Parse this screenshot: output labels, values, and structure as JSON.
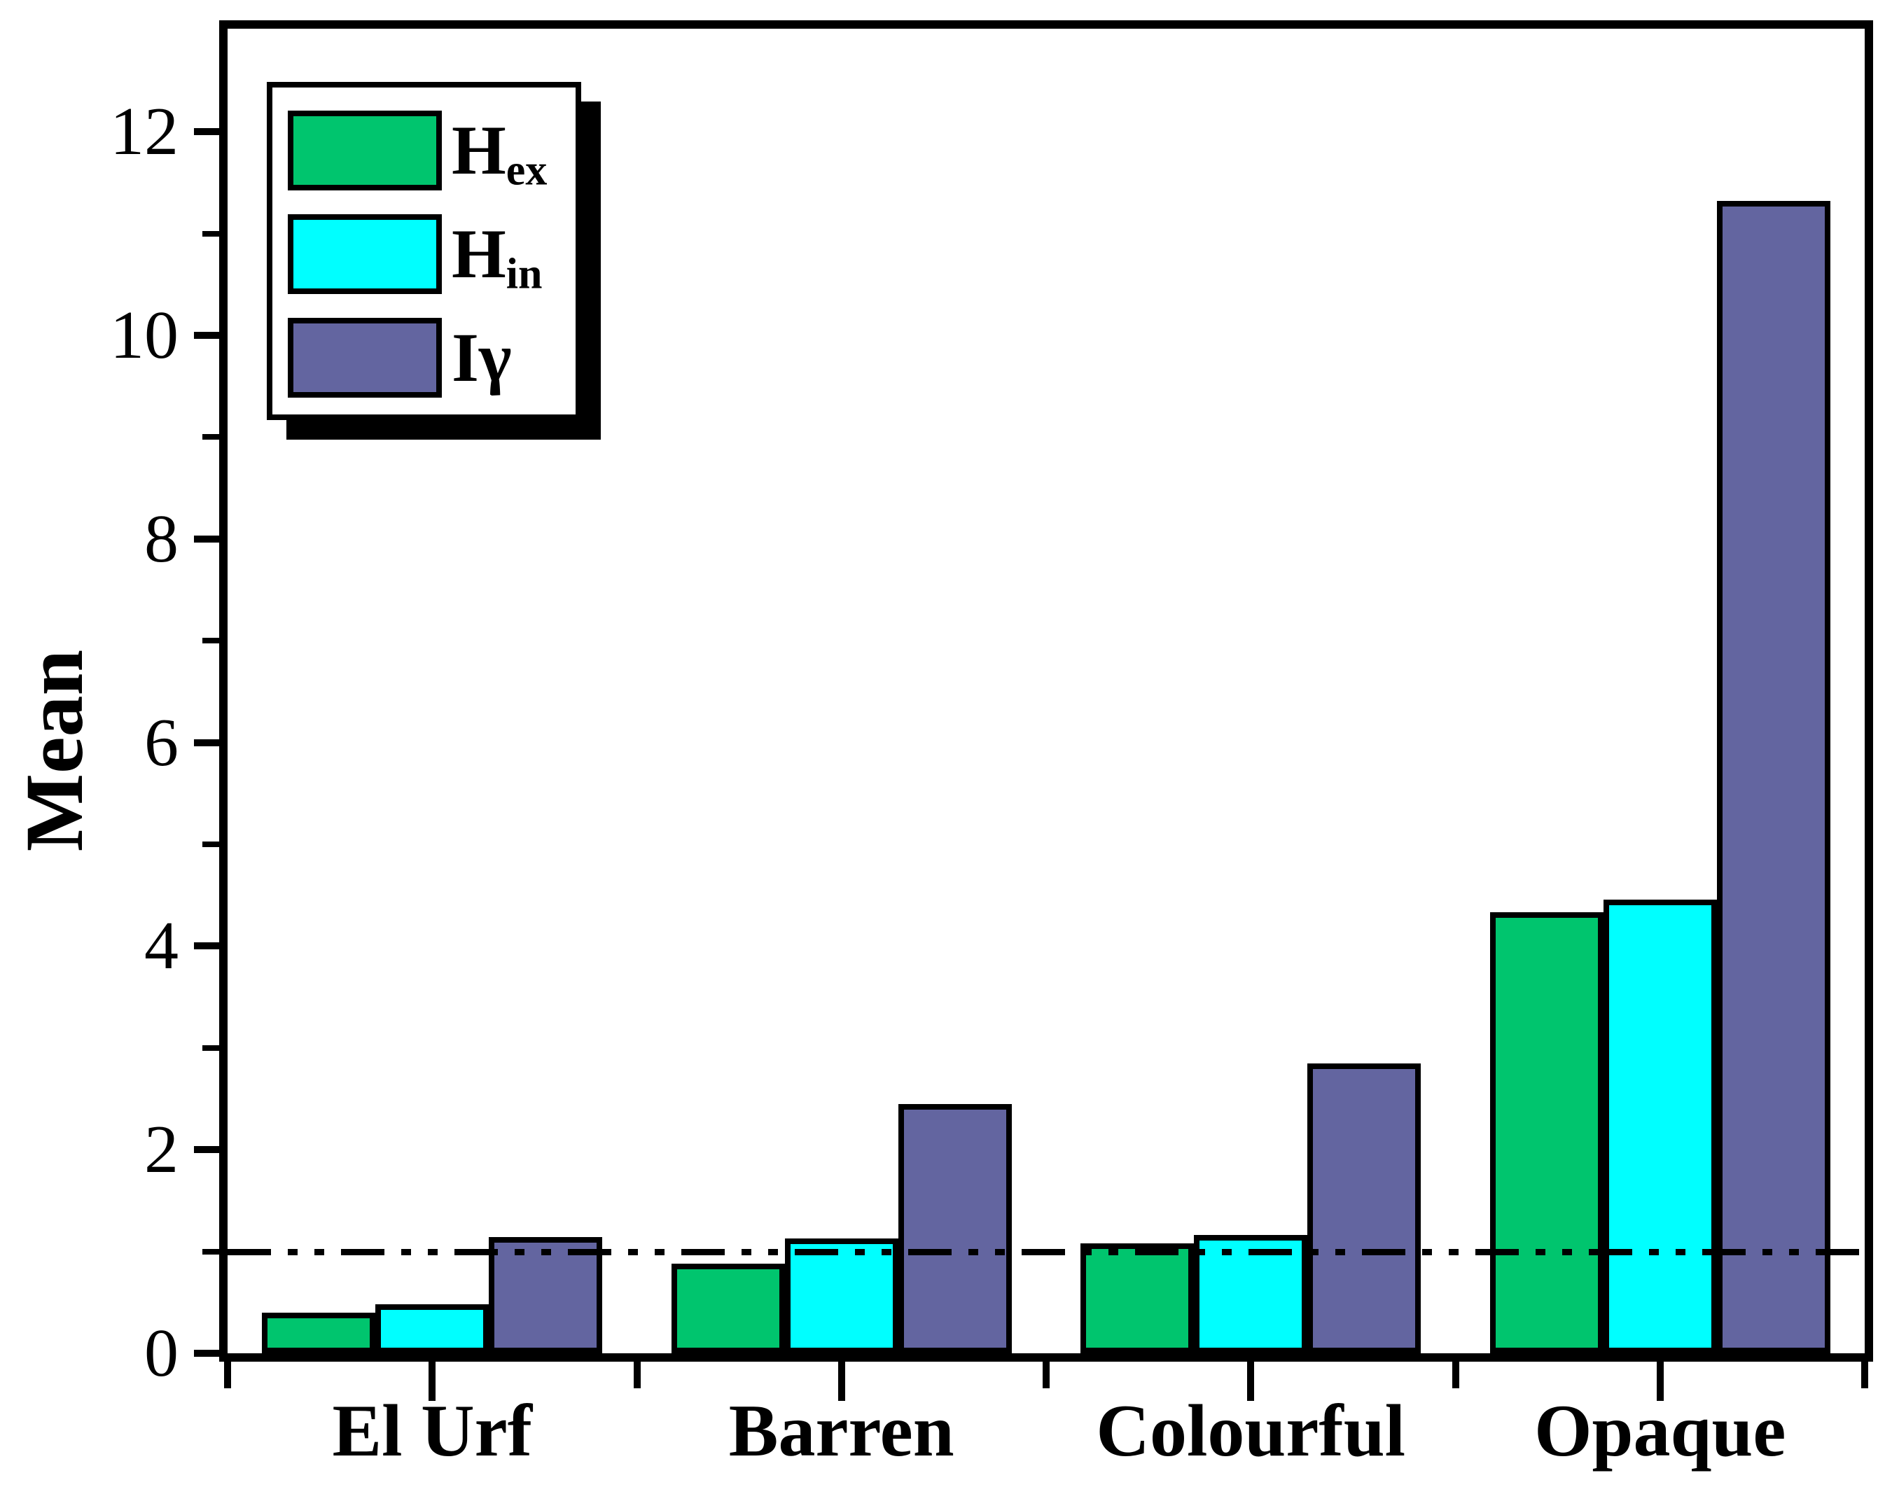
{
  "chart_data": {
    "type": "bar",
    "title": "",
    "xlabel": "",
    "ylabel": "Mean",
    "categories": [
      "El Urf",
      "Barren",
      "Colourful",
      "Opaque"
    ],
    "series": [
      {
        "name": "Hex",
        "label_main": "H",
        "label_sub": "ex",
        "color": "#00C56E",
        "values": [
          0.4,
          0.88,
          1.08,
          4.33
        ]
      },
      {
        "name": "Hin",
        "label_main": "H",
        "label_sub": "in",
        "color": "#00FFFF",
        "values": [
          0.48,
          1.13,
          1.16,
          4.46
        ]
      },
      {
        "name": "Igamma",
        "label_main": "Iγ",
        "label_sub": "",
        "color": "#6365A0",
        "values": [
          1.14,
          2.45,
          2.85,
          11.32
        ]
      }
    ],
    "ylim": [
      0,
      13.0
    ],
    "yticks": [
      0,
      2,
      4,
      6,
      8,
      10,
      12
    ],
    "minor_ytick_step": 1,
    "reference_line": {
      "y": 1.0,
      "style": "dash-dot-dot",
      "color": "#000000"
    },
    "legend_position": "top-left",
    "grid": false,
    "bar_outline_color": "#000000",
    "axis_color": "#000000",
    "background_color": "#FFFFFF"
  }
}
